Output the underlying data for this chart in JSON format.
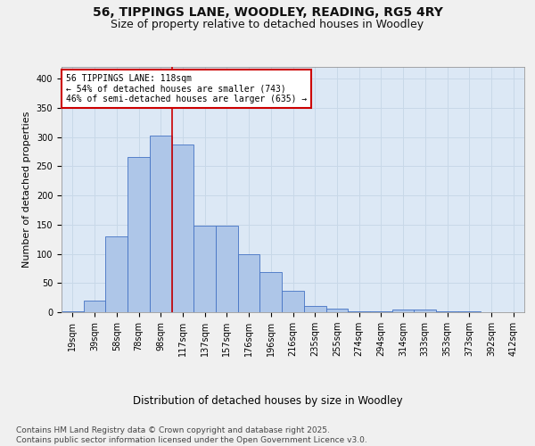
{
  "title1": "56, TIPPINGS LANE, WOODLEY, READING, RG5 4RY",
  "title2": "Size of property relative to detached houses in Woodley",
  "xlabel": "Distribution of detached houses by size in Woodley",
  "ylabel": "Number of detached properties",
  "bar_labels": [
    "19sqm",
    "39sqm",
    "58sqm",
    "78sqm",
    "98sqm",
    "117sqm",
    "137sqm",
    "157sqm",
    "176sqm",
    "196sqm",
    "216sqm",
    "235sqm",
    "255sqm",
    "274sqm",
    "294sqm",
    "314sqm",
    "333sqm",
    "353sqm",
    "373sqm",
    "392sqm",
    "412sqm"
  ],
  "bar_values": [
    2,
    20,
    130,
    265,
    302,
    287,
    148,
    148,
    100,
    68,
    37,
    10,
    6,
    2,
    1,
    5,
    5,
    2,
    1,
    0,
    0
  ],
  "bar_color": "#aec6e8",
  "bar_edge_color": "#4472c4",
  "vline_x_idx": 5,
  "vline_color": "#cc0000",
  "annotation_text": "56 TIPPINGS LANE: 118sqm\n← 54% of detached houses are smaller (743)\n46% of semi-detached houses are larger (635) →",
  "annotation_box_color": "#ffffff",
  "annotation_box_edge": "#cc0000",
  "grid_color": "#c8d8e8",
  "background_color": "#dce8f5",
  "fig_background": "#f0f0f0",
  "ylim": [
    0,
    420
  ],
  "yticks": [
    0,
    50,
    100,
    150,
    200,
    250,
    300,
    350,
    400
  ],
  "footer": "Contains HM Land Registry data © Crown copyright and database right 2025.\nContains public sector information licensed under the Open Government Licence v3.0.",
  "title_fontsize": 10,
  "subtitle_fontsize": 9,
  "tick_fontsize": 7,
  "ylabel_fontsize": 8,
  "xlabel_fontsize": 8.5,
  "footer_fontsize": 6.5,
  "annotation_fontsize": 7
}
